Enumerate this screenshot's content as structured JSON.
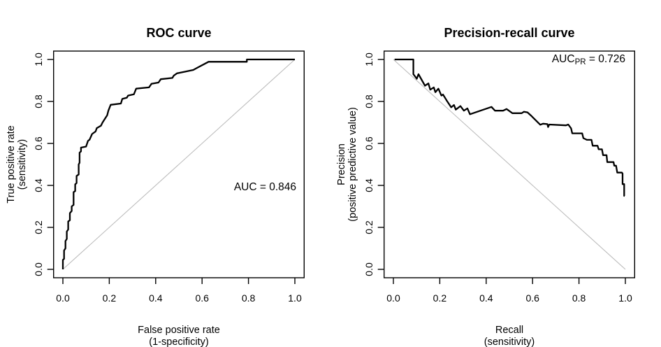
{
  "figure": {
    "background": "#ffffff",
    "curve_color": "#000000",
    "reference_line_color": "#bcbcbc",
    "axis_color": "#000000"
  },
  "chart_data": [
    {
      "type": "line",
      "title": "ROC curve",
      "xlabel": "False positive rate (1-specificity)",
      "ylabel": "True positive rate (sensitivity)",
      "xlabel_lines": [
        "False positive rate",
        "(1-specificity)"
      ],
      "ylabel_lines": [
        "True positive rate",
        "(sensitivity)"
      ],
      "xlim": [
        0,
        1
      ],
      "ylim": [
        0,
        1
      ],
      "grid": false,
      "legend": "none",
      "xticks": [
        0.0,
        0.2,
        0.4,
        0.6,
        0.8,
        1.0
      ],
      "yticks": [
        0.0,
        0.2,
        0.4,
        0.6,
        0.8,
        1.0
      ],
      "xtick_labels": [
        "0.0",
        "0.2",
        "0.4",
        "0.6",
        "0.8",
        "1.0"
      ],
      "ytick_labels": [
        "0.0",
        "0.2",
        "0.4",
        "0.6",
        "0.8",
        "1.0"
      ],
      "annotation": {
        "text": "AUC = 0.846",
        "x": 0.85,
        "y": 0.38
      },
      "series": [
        {
          "name": "ROC curve",
          "key": "roc-curve",
          "color": "#000000",
          "width": 2.3,
          "points": [
            [
              0.0,
              0.0
            ],
            [
              0.0,
              0.045
            ],
            [
              0.005,
              0.05
            ],
            [
              0.005,
              0.09
            ],
            [
              0.011,
              0.1
            ],
            [
              0.011,
              0.135
            ],
            [
              0.017,
              0.145
            ],
            [
              0.017,
              0.18
            ],
            [
              0.023,
              0.19
            ],
            [
              0.023,
              0.228
            ],
            [
              0.03,
              0.234
            ],
            [
              0.03,
              0.268
            ],
            [
              0.038,
              0.278
            ],
            [
              0.038,
              0.3
            ],
            [
              0.046,
              0.307
            ],
            [
              0.046,
              0.368
            ],
            [
              0.053,
              0.373
            ],
            [
              0.053,
              0.405
            ],
            [
              0.059,
              0.411
            ],
            [
              0.059,
              0.445
            ],
            [
              0.068,
              0.452
            ],
            [
              0.068,
              0.5
            ],
            [
              0.072,
              0.508
            ],
            [
              0.072,
              0.556
            ],
            [
              0.078,
              0.562
            ],
            [
              0.078,
              0.58
            ],
            [
              0.1,
              0.585
            ],
            [
              0.108,
              0.612
            ],
            [
              0.115,
              0.618
            ],
            [
              0.126,
              0.645
            ],
            [
              0.141,
              0.657
            ],
            [
              0.146,
              0.673
            ],
            [
              0.164,
              0.684
            ],
            [
              0.171,
              0.7
            ],
            [
              0.191,
              0.734
            ],
            [
              0.196,
              0.756
            ],
            [
              0.206,
              0.784
            ],
            [
              0.25,
              0.79
            ],
            [
              0.256,
              0.812
            ],
            [
              0.276,
              0.818
            ],
            [
              0.281,
              0.828
            ],
            [
              0.306,
              0.834
            ],
            [
              0.316,
              0.861
            ],
            [
              0.371,
              0.867
            ],
            [
              0.382,
              0.884
            ],
            [
              0.412,
              0.89
            ],
            [
              0.422,
              0.906
            ],
            [
              0.472,
              0.912
            ],
            [
              0.478,
              0.923
            ],
            [
              0.492,
              0.934
            ],
            [
              0.562,
              0.95
            ],
            [
              0.582,
              0.962
            ],
            [
              0.628,
              0.989
            ],
            [
              0.793,
              0.989
            ],
            [
              0.793,
              1.0
            ],
            [
              1.0,
              1.0
            ]
          ]
        },
        {
          "name": "chance diagonal",
          "key": "chance-diagonal",
          "color": "#bcbcbc",
          "width": 1.1,
          "points": [
            [
              0,
              0
            ],
            [
              1,
              1
            ]
          ]
        }
      ]
    },
    {
      "type": "line",
      "title": "Precision-recall curve",
      "xlabel": "Recall (sensitivity)",
      "ylabel": "Precision (positive predictive value)",
      "xlabel_lines": [
        "Recall",
        "(sensitivity)"
      ],
      "ylabel_lines": [
        "Precision",
        "(positive predictive value)"
      ],
      "xlim": [
        0,
        1
      ],
      "ylim": [
        0,
        1
      ],
      "grid": false,
      "legend": "none",
      "xticks": [
        0.0,
        0.2,
        0.4,
        0.6,
        0.8,
        1.0
      ],
      "yticks": [
        0.0,
        0.2,
        0.4,
        0.6,
        0.8,
        1.0
      ],
      "xtick_labels": [
        "0.0",
        "0.2",
        "0.4",
        "0.6",
        "0.8",
        "1.0"
      ],
      "ytick_labels": [
        "0.0",
        "0.2",
        "0.4",
        "0.6",
        "0.8",
        "1.0"
      ],
      "annotation": {
        "text": "AUC_PR = 0.726",
        "parts": [
          "AUC",
          "PR",
          " = 0.726"
        ],
        "x": 0.83,
        "y": 0.99
      },
      "series": [
        {
          "name": "Precision-recall curve",
          "key": "pr-curve",
          "color": "#000000",
          "width": 2.3,
          "points": [
            [
              0.005,
              1.0
            ],
            [
              0.086,
              1.0
            ],
            [
              0.086,
              0.93
            ],
            [
              0.101,
              0.908
            ],
            [
              0.108,
              0.93
            ],
            [
              0.136,
              0.875
            ],
            [
              0.151,
              0.886
            ],
            [
              0.159,
              0.856
            ],
            [
              0.174,
              0.867
            ],
            [
              0.181,
              0.844
            ],
            [
              0.194,
              0.861
            ],
            [
              0.207,
              0.828
            ],
            [
              0.214,
              0.833
            ],
            [
              0.229,
              0.806
            ],
            [
              0.249,
              0.772
            ],
            [
              0.261,
              0.783
            ],
            [
              0.269,
              0.761
            ],
            [
              0.289,
              0.778
            ],
            [
              0.304,
              0.756
            ],
            [
              0.319,
              0.767
            ],
            [
              0.33,
              0.739
            ],
            [
              0.423,
              0.774
            ],
            [
              0.438,
              0.756
            ],
            [
              0.473,
              0.756
            ],
            [
              0.488,
              0.764
            ],
            [
              0.513,
              0.744
            ],
            [
              0.553,
              0.744
            ],
            [
              0.563,
              0.751
            ],
            [
              0.578,
              0.748
            ],
            [
              0.593,
              0.733
            ],
            [
              0.603,
              0.722
            ],
            [
              0.633,
              0.689
            ],
            [
              0.645,
              0.694
            ],
            [
              0.664,
              0.692
            ],
            [
              0.667,
              0.678
            ],
            [
              0.672,
              0.69
            ],
            [
              0.744,
              0.686
            ],
            [
              0.754,
              0.69
            ],
            [
              0.766,
              0.672
            ],
            [
              0.771,
              0.648
            ],
            [
              0.814,
              0.648
            ],
            [
              0.819,
              0.625
            ],
            [
              0.834,
              0.617
            ],
            [
              0.854,
              0.617
            ],
            [
              0.859,
              0.589
            ],
            [
              0.88,
              0.589
            ],
            [
              0.885,
              0.572
            ],
            [
              0.899,
              0.572
            ],
            [
              0.904,
              0.544
            ],
            [
              0.919,
              0.544
            ],
            [
              0.922,
              0.511
            ],
            [
              0.949,
              0.511
            ],
            [
              0.952,
              0.494
            ],
            [
              0.96,
              0.494
            ],
            [
              0.965,
              0.461
            ],
            [
              0.985,
              0.461
            ],
            [
              0.988,
              0.456
            ],
            [
              0.988,
              0.406
            ],
            [
              0.995,
              0.406
            ],
            [
              0.995,
              0.35
            ],
            [
              0.997,
              0.35
            ]
          ]
        },
        {
          "name": "baseline diagonal",
          "key": "baseline-diagonal",
          "color": "#bcbcbc",
          "width": 1.1,
          "points": [
            [
              0,
              1
            ],
            [
              1,
              0
            ]
          ]
        }
      ]
    }
  ]
}
